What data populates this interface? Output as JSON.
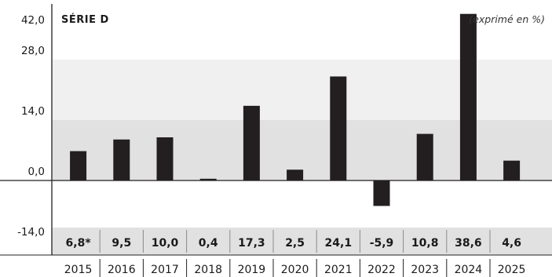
{
  "chart_data": {
    "type": "bar",
    "title": "SÉRIE D",
    "unit_note": "(exprimé en %)",
    "categories": [
      "2015",
      "2016",
      "2017",
      "2018",
      "2019",
      "2020",
      "2021",
      "2022",
      "2023",
      "2024",
      "2025"
    ],
    "values": [
      6.8,
      9.5,
      10.0,
      0.4,
      17.3,
      2.5,
      24.1,
      -5.9,
      10.8,
      38.6,
      4.6
    ],
    "value_labels": [
      "6,8*",
      "9,5",
      "10,0",
      "0,4",
      "17,3",
      "2,5",
      "24,1",
      "-5,9",
      "10,8",
      "38,6",
      "4,6"
    ],
    "yticks": [
      -14,
      0,
      14,
      28,
      42
    ],
    "ytick_labels": [
      "-14,0",
      "0,0",
      "14,0",
      "28,0",
      "42,0"
    ],
    "ylim": [
      -14,
      42
    ],
    "bar_color": "#231f20",
    "band_colors": [
      "#e1e1e1",
      "#f0f0f0"
    ],
    "value_row_color": "#e1e1e1"
  }
}
